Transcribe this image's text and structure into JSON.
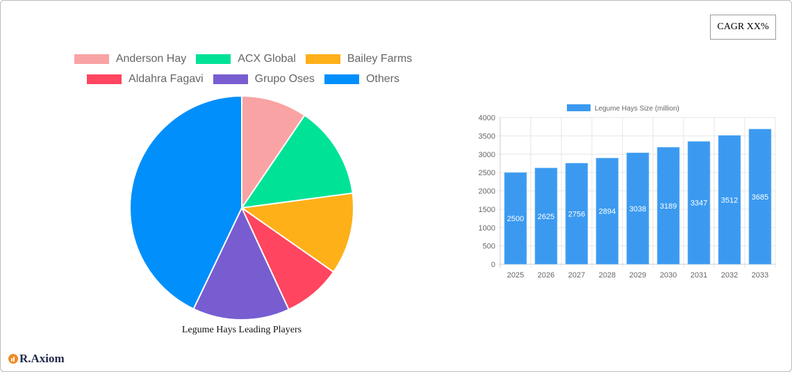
{
  "cagr_label": "CAGR XX%",
  "brand": "R.Axiom",
  "chart_data": [
    {
      "type": "pie",
      "title": "Legume Hays Leading Players",
      "legend_position": "top",
      "labels": [
        "Anderson Hay",
        "ACX Global",
        "Bailey Farms",
        "Aldahra Fagavi",
        "Grupo Oses",
        "Others"
      ],
      "values": [
        9.5,
        13.4,
        11.8,
        8.4,
        14.0,
        42.9
      ],
      "colors": [
        "#f9a3a4",
        "#00e396",
        "#feb019",
        "#ff4560",
        "#775dd0",
        "#008ffb"
      ]
    },
    {
      "type": "bar",
      "legend_position": "top",
      "series": [
        {
          "name": "Legume Hays Size (million)",
          "values": [
            2500,
            2625,
            2756,
            2894,
            3038,
            3189,
            3347,
            3512,
            3685
          ]
        }
      ],
      "categories": [
        "2025",
        "2026",
        "2027",
        "2028",
        "2029",
        "2030",
        "2031",
        "2032",
        "2033"
      ],
      "ylim": [
        0,
        4000
      ],
      "yticks": [
        0,
        500,
        1000,
        1500,
        2000,
        2500,
        3000,
        3500,
        4000
      ],
      "grid": true,
      "color": "#3b9af0"
    }
  ]
}
